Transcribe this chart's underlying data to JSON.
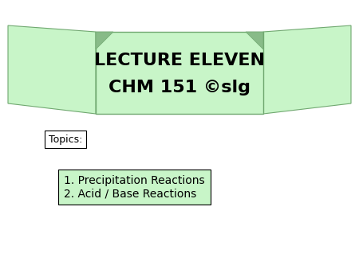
{
  "background_color": "#ffffff",
  "banner_color": "#c8f5c8",
  "banner_outline": "#70a870",
  "title_line1": "LECTURE ELEVEN",
  "title_line2": "CHM 151 ©slg",
  "title_fontsize": 16,
  "title_bold": true,
  "topics_label": "Topics:",
  "topics_fontsize": 9,
  "topics_box_color": "#ffffff",
  "items": [
    "1. Precipitation Reactions",
    "2. Acid / Base Reactions"
  ],
  "items_fontsize": 10,
  "items_box_color": "#c8f5c8"
}
